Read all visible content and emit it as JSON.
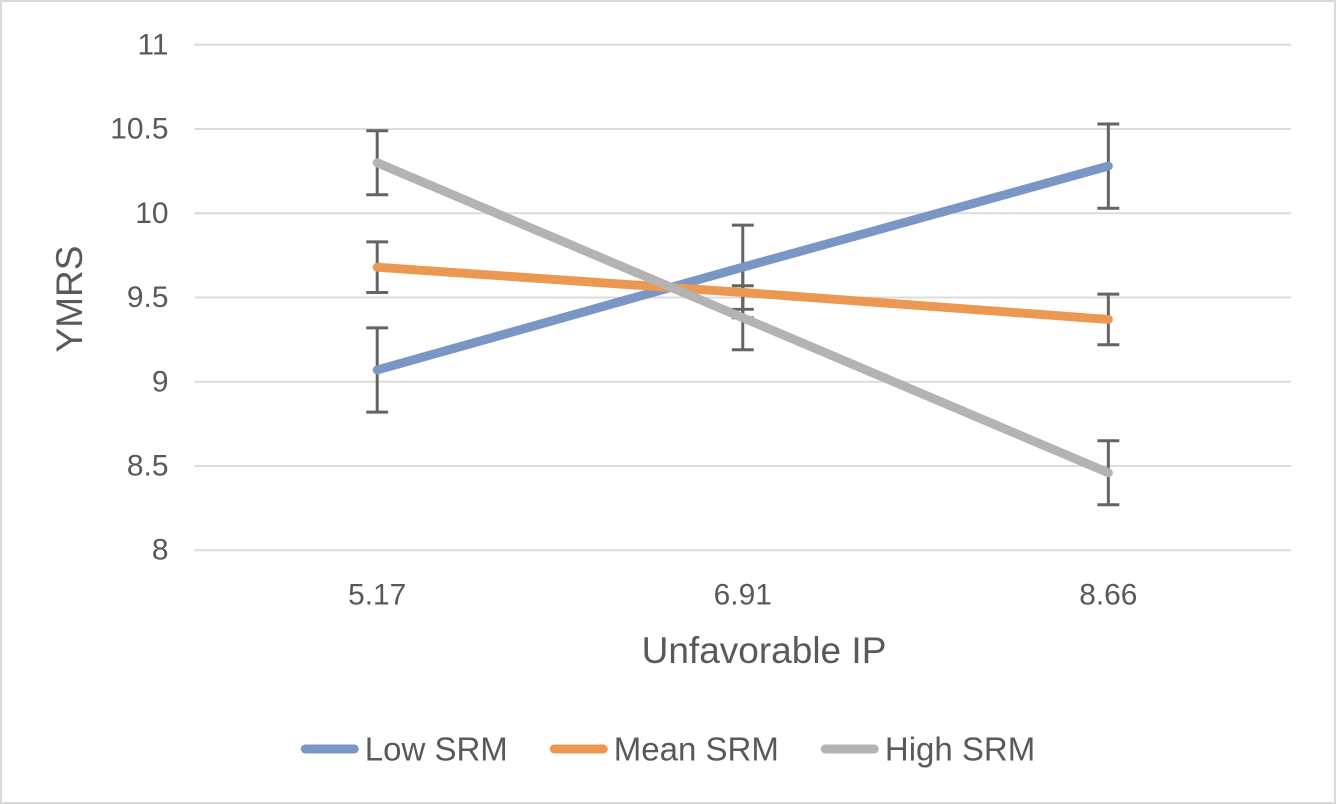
{
  "chart_data": {
    "type": "line",
    "title": "",
    "xlabel": "Unfavorable IP",
    "ylabel": "YMRS",
    "categories": [
      "5.17",
      "6.91",
      "8.66"
    ],
    "ylim": [
      8,
      11
    ],
    "y_tick_values": [
      11,
      10.5,
      10,
      9.5,
      9,
      8.5,
      8
    ],
    "y_tick_labels": [
      "11",
      "10.5",
      "10",
      "9.5",
      "9",
      "8.5",
      "8"
    ],
    "grid": "horizontal",
    "legend_position": "bottom",
    "series": [
      {
        "name": "Low SRM",
        "color": "#7A96C5",
        "values": [
          9.07,
          9.68,
          10.28
        ],
        "error": [
          0.25,
          0.25,
          0.25
        ]
      },
      {
        "name": "Mean SRM",
        "color": "#EC9853",
        "values": [
          9.68,
          9.53,
          9.37
        ],
        "error": [
          0.15,
          0.15,
          0.15
        ]
      },
      {
        "name": "High SRM",
        "color": "#B3B3B3",
        "values": [
          10.3,
          9.38,
          8.46
        ],
        "error": [
          0.19,
          0.19,
          0.19
        ]
      }
    ],
    "colors": {
      "text": "#595959",
      "gridline": "#DCDCDC",
      "error_bar": "#646464",
      "background": "#FFFFFF",
      "figure_border": "#D9D9D9"
    }
  }
}
